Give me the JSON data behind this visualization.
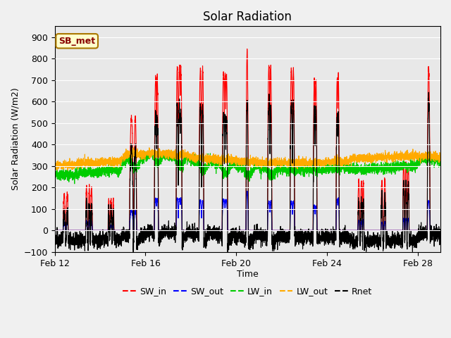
{
  "title": "Solar Radiation",
  "xlabel": "Time",
  "ylabel": "Solar Radiation (W/m2)",
  "ylim": [
    -100,
    950
  ],
  "yticks": [
    -100,
    0,
    100,
    200,
    300,
    400,
    500,
    600,
    700,
    800,
    900
  ],
  "xlim_days": [
    0,
    17
  ],
  "xtick_days": [
    0,
    4,
    8,
    12,
    16
  ],
  "xtick_labels": [
    "Feb 12",
    "Feb 16",
    "Feb 20",
    "Feb 24",
    "Feb 28"
  ],
  "legend_labels": [
    "SW_in",
    "SW_out",
    "LW_in",
    "LW_out",
    "Rnet"
  ],
  "legend_colors": [
    "#ff0000",
    "#0000ff",
    "#00cc00",
    "#ffaa00",
    "#000000"
  ],
  "annotation_text": "SB_met",
  "annotation_bg": "#ffffcc",
  "annotation_border": "#aa7700",
  "annotation_text_color": "#880000",
  "plot_bg": "#e8e8e8",
  "grid_color": "#ffffff",
  "title_fontsize": 12,
  "fig_bg": "#f0f0f0"
}
